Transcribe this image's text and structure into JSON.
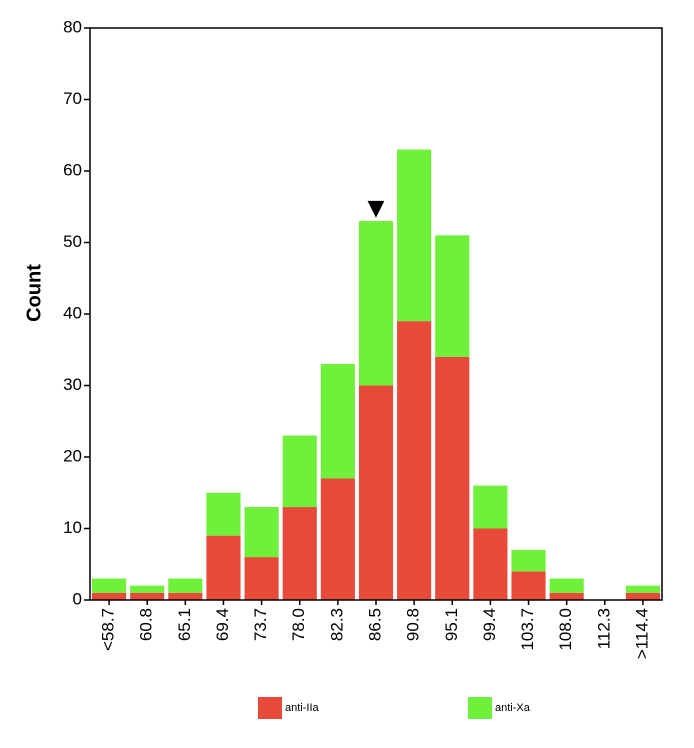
{
  "chart_data": {
    "type": "bar",
    "stacked": true,
    "categories": [
      "<58.7",
      "60.8",
      "65.1",
      "69.4",
      "73.7",
      "78.0",
      "82.3",
      "86.5",
      "90.8",
      "95.1",
      "99.4",
      "103.7",
      "108.0",
      "112.3",
      ">114.4"
    ],
    "series": [
      {
        "name": "anti-IIa",
        "color": "#e84a3a",
        "values": [
          1,
          1,
          1,
          9,
          6,
          13,
          17,
          30,
          39,
          34,
          10,
          4,
          1,
          0,
          1
        ]
      },
      {
        "name": "anti-Xa",
        "color": "#6ff03a",
        "values": [
          2,
          1,
          2,
          6,
          7,
          10,
          16,
          23,
          24,
          17,
          6,
          3,
          2,
          0,
          1
        ]
      }
    ],
    "ylabel": "Count",
    "xlabel": "",
    "ylim": [
      0,
      80
    ],
    "yticks": [
      0,
      10,
      20,
      30,
      40,
      50,
      60,
      70,
      80
    ],
    "marker_category": "86.5",
    "marker_symbol": "▼",
    "legend_position": "bottom",
    "grid": false
  }
}
